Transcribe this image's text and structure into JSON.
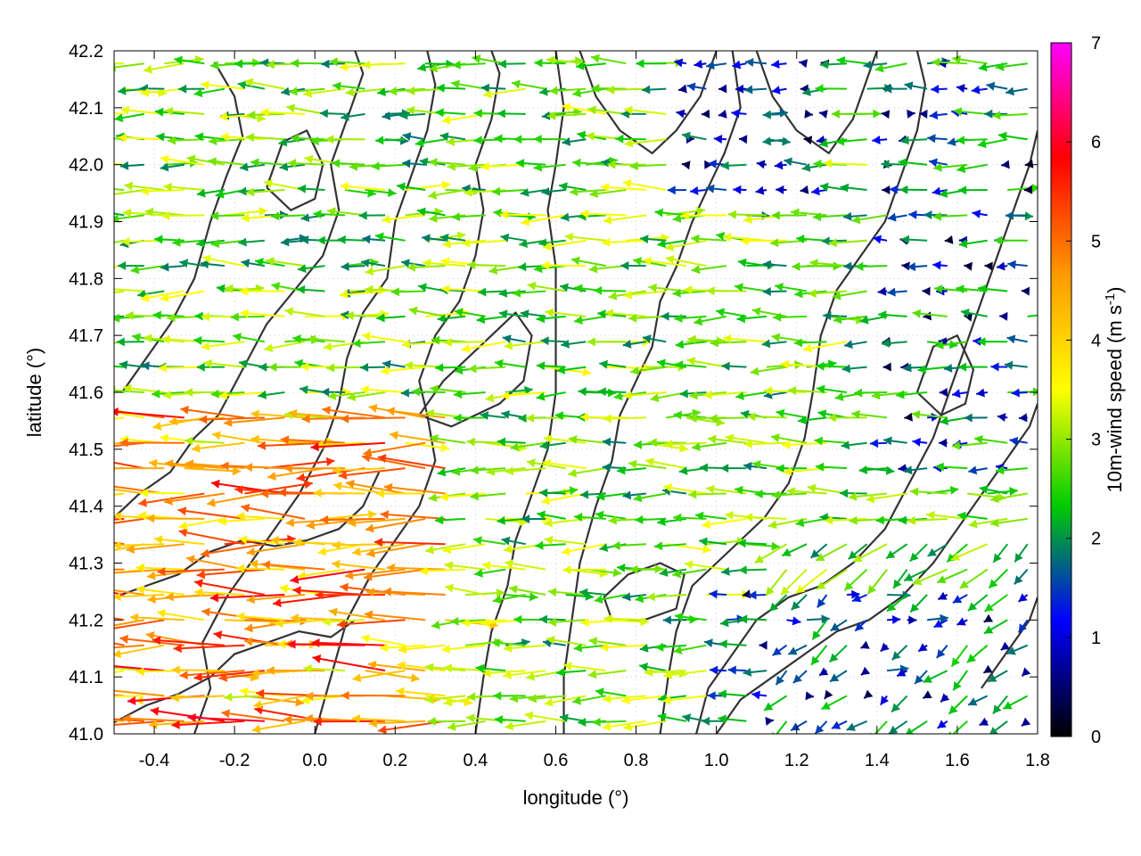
{
  "chart_data": {
    "type": "quiver",
    "xlabel": "longitude (°)",
    "ylabel": "latitude (°)",
    "xlim": [
      -0.5,
      1.8
    ],
    "ylim": [
      41.0,
      42.2
    ],
    "x_ticks": [
      "-0.4",
      "-0.2",
      "0.0",
      "0.2",
      "0.4",
      "0.6",
      "0.8",
      "1.0",
      "1.2",
      "1.4",
      "1.6",
      "1.8"
    ],
    "x_tick_values": [
      -0.4,
      -0.2,
      0.0,
      0.2,
      0.4,
      0.6,
      0.8,
      1.0,
      1.2,
      1.4,
      1.6,
      1.8
    ],
    "y_ticks": [
      "41.0",
      "41.1",
      "41.2",
      "41.3",
      "41.4",
      "41.5",
      "41.6",
      "41.7",
      "41.8",
      "41.9",
      "42.0",
      "42.1",
      "42.2"
    ],
    "y_tick_values": [
      41.0,
      41.1,
      41.2,
      41.3,
      41.4,
      41.5,
      41.6,
      41.7,
      41.8,
      41.9,
      42.0,
      42.1,
      42.2
    ],
    "grid": true,
    "colorbar": {
      "label": "10m-wind speed (m s",
      "label_superscript": "-1",
      "label_suffix": ")",
      "range": [
        0,
        7
      ],
      "ticks": [
        "0",
        "1",
        "2",
        "3",
        "4",
        "5",
        "6",
        "7"
      ],
      "tick_values": [
        0,
        1,
        2,
        3,
        4,
        5,
        6,
        7
      ],
      "colors": [
        "#000000",
        "#0000ff",
        "#00cc00",
        "#ffff00",
        "#ff9900",
        "#ff0000",
        "#ff00ff"
      ]
    },
    "contours": [
      [
        [
          -0.48,
          41.6
        ],
        [
          -0.42,
          41.66
        ],
        [
          -0.36,
          41.72
        ],
        [
          -0.3,
          41.8
        ],
        [
          -0.26,
          41.9
        ],
        [
          -0.22,
          41.98
        ],
        [
          -0.18,
          42.05
        ],
        [
          -0.2,
          42.12
        ],
        [
          -0.25,
          42.18
        ]
      ],
      [
        [
          -0.5,
          41.38
        ],
        [
          -0.44,
          41.42
        ],
        [
          -0.36,
          41.46
        ],
        [
          -0.3,
          41.52
        ],
        [
          -0.24,
          41.56
        ],
        [
          -0.18,
          41.64
        ],
        [
          -0.12,
          41.72
        ],
        [
          -0.05,
          41.78
        ],
        [
          0.02,
          41.84
        ],
        [
          0.06,
          41.92
        ],
        [
          0.04,
          42.0
        ],
        [
          0.08,
          42.08
        ],
        [
          0.12,
          42.16
        ],
        [
          0.1,
          42.2
        ]
      ],
      [
        [
          -0.3,
          41.0
        ],
        [
          -0.26,
          41.08
        ],
        [
          -0.28,
          41.16
        ],
        [
          -0.22,
          41.24
        ],
        [
          -0.16,
          41.3
        ],
        [
          -0.1,
          41.36
        ],
        [
          -0.04,
          41.42
        ],
        [
          0.02,
          41.5
        ],
        [
          0.06,
          41.58
        ],
        [
          0.08,
          41.66
        ],
        [
          0.12,
          41.74
        ],
        [
          0.18,
          41.8
        ],
        [
          0.2,
          41.9
        ],
        [
          0.24,
          41.98
        ],
        [
          0.28,
          42.06
        ],
        [
          0.3,
          42.14
        ],
        [
          0.28,
          42.2
        ]
      ],
      [
        [
          0.0,
          41.0
        ],
        [
          0.04,
          41.1
        ],
        [
          0.08,
          41.2
        ],
        [
          0.14,
          41.28
        ],
        [
          0.2,
          41.34
        ],
        [
          0.26,
          41.4
        ],
        [
          0.3,
          41.48
        ],
        [
          0.28,
          41.56
        ],
        [
          0.26,
          41.62
        ],
        [
          0.3,
          41.7
        ],
        [
          0.36,
          41.76
        ],
        [
          0.4,
          41.84
        ],
        [
          0.42,
          41.92
        ],
        [
          0.4,
          42.0
        ],
        [
          0.44,
          42.08
        ],
        [
          0.46,
          42.16
        ],
        [
          0.44,
          42.2
        ]
      ],
      [
        [
          0.4,
          41.0
        ],
        [
          0.42,
          41.1
        ],
        [
          0.44,
          41.18
        ],
        [
          0.48,
          41.26
        ],
        [
          0.5,
          41.34
        ],
        [
          0.54,
          41.42
        ],
        [
          0.58,
          41.5
        ],
        [
          0.6,
          41.6
        ],
        [
          0.6,
          41.7
        ],
        [
          0.6,
          41.82
        ],
        [
          0.58,
          41.92
        ],
        [
          0.6,
          42.0
        ],
        [
          0.62,
          42.1
        ],
        [
          0.6,
          42.2
        ]
      ],
      [
        [
          0.62,
          41.0
        ],
        [
          0.62,
          41.1
        ],
        [
          0.64,
          41.2
        ],
        [
          0.66,
          41.3
        ],
        [
          0.7,
          41.4
        ],
        [
          0.74,
          41.48
        ],
        [
          0.76,
          41.56
        ],
        [
          0.8,
          41.62
        ],
        [
          0.84,
          41.68
        ],
        [
          0.86,
          41.76
        ],
        [
          0.9,
          41.82
        ],
        [
          0.94,
          41.9
        ],
        [
          0.98,
          41.96
        ],
        [
          1.02,
          42.02
        ],
        [
          1.06,
          42.1
        ],
        [
          1.04,
          42.2
        ]
      ],
      [
        [
          0.86,
          41.0
        ],
        [
          0.88,
          41.1
        ],
        [
          0.9,
          41.18
        ],
        [
          0.94,
          41.26
        ],
        [
          1.0,
          41.3
        ],
        [
          1.06,
          41.34
        ],
        [
          1.12,
          41.38
        ],
        [
          1.18,
          41.44
        ],
        [
          1.22,
          41.52
        ],
        [
          1.24,
          41.6
        ],
        [
          1.26,
          41.7
        ],
        [
          1.3,
          41.78
        ],
        [
          1.36,
          41.84
        ],
        [
          1.42,
          41.9
        ],
        [
          1.46,
          41.98
        ],
        [
          1.5,
          42.06
        ],
        [
          1.52,
          42.14
        ],
        [
          1.5,
          42.2
        ]
      ],
      [
        [
          0.95,
          41.0
        ],
        [
          0.98,
          41.08
        ],
        [
          1.04,
          41.14
        ],
        [
          1.1,
          41.2
        ],
        [
          1.18,
          41.24
        ],
        [
          1.26,
          41.26
        ],
        [
          1.34,
          41.3
        ],
        [
          1.42,
          41.36
        ],
        [
          1.48,
          41.44
        ],
        [
          1.54,
          41.52
        ],
        [
          1.58,
          41.6
        ],
        [
          1.62,
          41.68
        ],
        [
          1.66,
          41.76
        ],
        [
          1.7,
          41.84
        ],
        [
          1.74,
          41.92
        ],
        [
          1.78,
          42.0
        ],
        [
          1.8,
          42.06
        ]
      ],
      [
        [
          1.0,
          41.0
        ],
        [
          1.06,
          41.06
        ],
        [
          1.14,
          41.1
        ],
        [
          1.22,
          41.14
        ],
        [
          1.3,
          41.18
        ],
        [
          1.38,
          41.2
        ],
        [
          1.46,
          41.24
        ],
        [
          1.54,
          41.3
        ],
        [
          1.6,
          41.36
        ],
        [
          1.66,
          41.42
        ],
        [
          1.72,
          41.48
        ],
        [
          1.78,
          41.54
        ],
        [
          1.8,
          41.58
        ]
      ],
      [
        [
          -0.5,
          41.24
        ],
        [
          -0.42,
          41.26
        ],
        [
          -0.34,
          41.28
        ],
        [
          -0.26,
          41.32
        ],
        [
          -0.18,
          41.34
        ],
        [
          -0.1,
          41.33
        ],
        [
          -0.02,
          41.34
        ],
        [
          0.06,
          41.36
        ],
        [
          0.12,
          41.4
        ],
        [
          0.16,
          41.46
        ]
      ],
      [
        [
          -0.5,
          41.02
        ],
        [
          -0.42,
          41.05
        ],
        [
          -0.34,
          41.07
        ],
        [
          -0.26,
          41.1
        ],
        [
          -0.2,
          41.14
        ],
        [
          -0.12,
          41.16
        ],
        [
          -0.04,
          41.18
        ],
        [
          0.04,
          41.17
        ],
        [
          0.1,
          41.2
        ]
      ],
      [
        [
          0.26,
          41.56
        ],
        [
          0.32,
          41.62
        ],
        [
          0.38,
          41.66
        ],
        [
          0.44,
          41.7
        ],
        [
          0.5,
          41.74
        ],
        [
          0.54,
          41.7
        ],
        [
          0.52,
          41.62
        ],
        [
          0.46,
          41.58
        ],
        [
          0.4,
          41.56
        ],
        [
          0.34,
          41.54
        ],
        [
          0.26,
          41.56
        ]
      ],
      [
        [
          0.72,
          41.24
        ],
        [
          0.78,
          41.28
        ],
        [
          0.86,
          41.3
        ],
        [
          0.92,
          41.28
        ],
        [
          0.9,
          41.22
        ],
        [
          0.82,
          41.2
        ],
        [
          0.74,
          41.2
        ],
        [
          0.72,
          41.24
        ]
      ],
      [
        [
          1.66,
          41.08
        ],
        [
          1.72,
          41.14
        ],
        [
          1.78,
          41.2
        ],
        [
          1.8,
          41.24
        ]
      ],
      [
        [
          0.66,
          42.2
        ],
        [
          0.7,
          42.12
        ],
        [
          0.76,
          42.06
        ],
        [
          0.84,
          42.02
        ],
        [
          0.9,
          42.06
        ],
        [
          0.96,
          42.12
        ],
        [
          1.0,
          42.2
        ]
      ],
      [
        [
          1.1,
          42.2
        ],
        [
          1.14,
          42.12
        ],
        [
          1.2,
          42.06
        ],
        [
          1.28,
          42.02
        ],
        [
          1.34,
          42.08
        ],
        [
          1.38,
          42.16
        ],
        [
          1.4,
          42.2
        ]
      ],
      [
        [
          -0.12,
          41.96
        ],
        [
          -0.06,
          41.92
        ],
        [
          0.0,
          41.94
        ],
        [
          0.02,
          42.0
        ],
        [
          -0.02,
          42.06
        ],
        [
          -0.08,
          42.04
        ],
        [
          -0.12,
          41.96
        ]
      ],
      [
        [
          1.5,
          41.6
        ],
        [
          1.56,
          41.56
        ],
        [
          1.62,
          41.58
        ],
        [
          1.64,
          41.64
        ],
        [
          1.6,
          41.7
        ],
        [
          1.54,
          41.68
        ],
        [
          1.5,
          41.6
        ]
      ]
    ],
    "vector_field": {
      "nx": 46,
      "ny": 27,
      "max_speed": 7,
      "scale_deg_per_ms": 0.032,
      "dominant_direction": "easterly (arrows pointing west)"
    }
  }
}
